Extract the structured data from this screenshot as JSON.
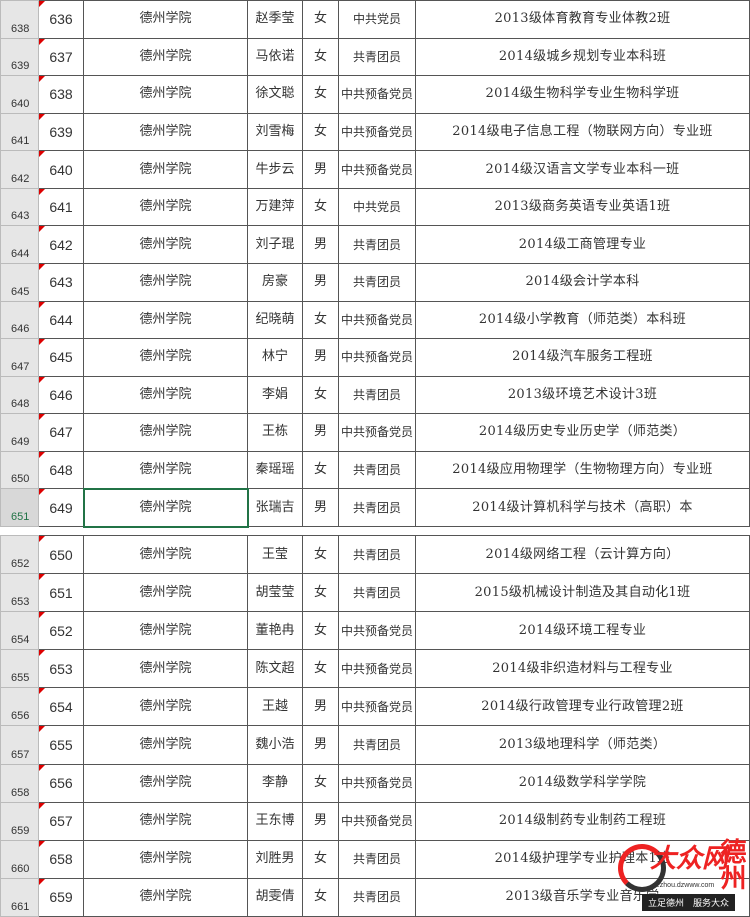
{
  "school": "德州学院",
  "block1": [
    {
      "row": "638",
      "no": "636",
      "name": "赵季莹",
      "sex": "女",
      "pol": "中共党员",
      "cls": "2013级体育教育专业体教2班"
    },
    {
      "row": "639",
      "no": "637",
      "name": "马依诺",
      "sex": "女",
      "pol": "共青团员",
      "cls": "2014级城乡规划专业本科班"
    },
    {
      "row": "640",
      "no": "638",
      "name": "徐文聪",
      "sex": "女",
      "pol": "中共预备党员",
      "cls": "2014级生物科学专业生物科学班"
    },
    {
      "row": "641",
      "no": "639",
      "name": "刘雪梅",
      "sex": "女",
      "pol": "中共预备党员",
      "cls": "2014级电子信息工程（物联网方向）专业班"
    },
    {
      "row": "642",
      "no": "640",
      "name": "牛步云",
      "sex": "男",
      "pol": "中共预备党员",
      "cls": "2014级汉语言文学专业本科一班"
    },
    {
      "row": "643",
      "no": "641",
      "name": "万建萍",
      "sex": "女",
      "pol": "中共党员",
      "cls": "2013级商务英语专业英语1班"
    },
    {
      "row": "644",
      "no": "642",
      "name": "刘子琨",
      "sex": "男",
      "pol": "共青团员",
      "cls": "2014级工商管理专业"
    },
    {
      "row": "645",
      "no": "643",
      "name": "房豪",
      "sex": "男",
      "pol": "共青团员",
      "cls": "2014级会计学本科"
    },
    {
      "row": "646",
      "no": "644",
      "name": "纪晓萌",
      "sex": "女",
      "pol": "中共预备党员",
      "cls": "2014级小学教育（师范类）本科班"
    },
    {
      "row": "647",
      "no": "645",
      "name": "林宁",
      "sex": "男",
      "pol": "中共预备党员",
      "cls": "2014级汽车服务工程班"
    },
    {
      "row": "648",
      "no": "646",
      "name": "李娟",
      "sex": "女",
      "pol": "共青团员",
      "cls": "2013级环境艺术设计3班"
    },
    {
      "row": "649",
      "no": "647",
      "name": "王栋",
      "sex": "男",
      "pol": "中共预备党员",
      "cls": "2014级历史专业历史学（师范类）"
    },
    {
      "row": "650",
      "no": "648",
      "name": "秦瑶瑶",
      "sex": "女",
      "pol": "共青团员",
      "cls": "2014级应用物理学（生物物理方向）专业班"
    },
    {
      "row": "651",
      "no": "649",
      "name": "张瑞吉",
      "sex": "男",
      "pol": "共青团员",
      "cls": "2014级计算机科学与技术（高职）本"
    }
  ],
  "block2": [
    {
      "row": "652",
      "no": "650",
      "name": "王莹",
      "sex": "女",
      "pol": "共青团员",
      "cls": "2014级网络工程（云计算方向）"
    },
    {
      "row": "653",
      "no": "651",
      "name": "胡莹莹",
      "sex": "女",
      "pol": "共青团员",
      "cls": "2015级机械设计制造及其自动化1班"
    },
    {
      "row": "654",
      "no": "652",
      "name": "董艳冉",
      "sex": "女",
      "pol": "中共预备党员",
      "cls": "2014级环境工程专业"
    },
    {
      "row": "655",
      "no": "653",
      "name": "陈文超",
      "sex": "女",
      "pol": "中共预备党员",
      "cls": "2014级非织造材料与工程专业"
    },
    {
      "row": "656",
      "no": "654",
      "name": "王越",
      "sex": "男",
      "pol": "中共预备党员",
      "cls": "2014级行政管理专业行政管理2班"
    },
    {
      "row": "657",
      "no": "655",
      "name": "魏小浩",
      "sex": "男",
      "pol": "共青团员",
      "cls": "2013级地理科学（师范类）"
    },
    {
      "row": "658",
      "no": "656",
      "name": "李静",
      "sex": "女",
      "pol": "中共预备党员",
      "cls": "2014级数学科学学院"
    },
    {
      "row": "659",
      "no": "657",
      "name": "王东博",
      "sex": "男",
      "pol": "中共预备党员",
      "cls": "2014级制药专业制药工程班"
    },
    {
      "row": "660",
      "no": "658",
      "name": "刘胜男",
      "sex": "女",
      "pol": "共青团员",
      "cls": "2014级护理学专业护理本1班"
    },
    {
      "row": "661",
      "no": "659",
      "name": "胡雯倩",
      "sex": "女",
      "pol": "共青团员",
      "cls": "2013级音乐学专业音乐学"
    }
  ],
  "selected_row": "651",
  "watermark": {
    "logo": "大众网",
    "city": "德州",
    "url": "dezhou.dzwww.com",
    "slogan": "立足德州　服务大众"
  }
}
